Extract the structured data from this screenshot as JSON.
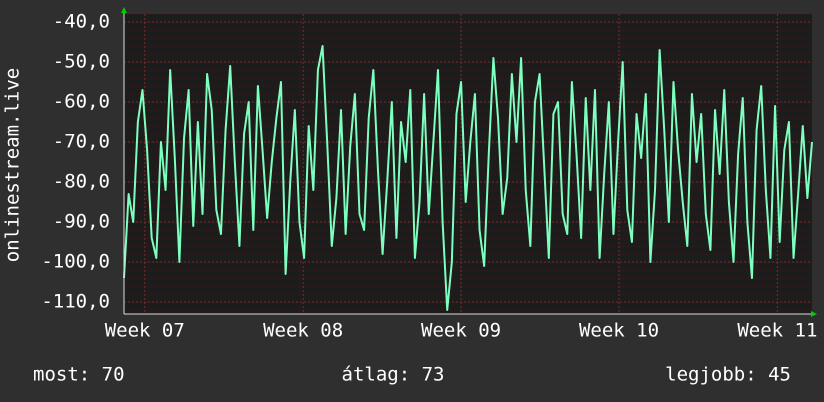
{
  "chart_data": {
    "type": "line",
    "y_label": "onlinestream.live",
    "color": "#7dffc0",
    "values": [
      -104,
      -83,
      -90,
      -65,
      -57,
      -72,
      -94,
      -99,
      -70,
      -82,
      -52,
      -74,
      -100,
      -69,
      -57,
      -91,
      -65,
      -88,
      -53,
      -62,
      -87,
      -93,
      -67,
      -51,
      -75,
      -96,
      -68,
      -60,
      -92,
      -56,
      -72,
      -89,
      -75,
      -64,
      -55,
      -103,
      -80,
      -62,
      -90,
      -99,
      -66,
      -82,
      -52,
      -46,
      -70,
      -96,
      -84,
      -62,
      -93,
      -71,
      -58,
      -88,
      -92,
      -64,
      -52,
      -77,
      -98,
      -80,
      -60,
      -94,
      -65,
      -75,
      -57,
      -99,
      -85,
      -58,
      -88,
      -70,
      -52,
      -90,
      -112,
      -100,
      -63,
      -55,
      -85,
      -70,
      -58,
      -92,
      -101,
      -73,
      -49,
      -64,
      -88,
      -79,
      -53,
      -70,
      -49,
      -82,
      -96,
      -60,
      -53,
      -76,
      -99,
      -63,
      -60,
      -88,
      -93,
      -55,
      -73,
      -94,
      -59,
      -82,
      -57,
      -99,
      -78,
      -60,
      -93,
      -70,
      -50,
      -87,
      -95,
      -63,
      -74,
      -58,
      -100,
      -82,
      -47,
      -67,
      -90,
      -55,
      -72,
      -85,
      -96,
      -58,
      -75,
      -63,
      -88,
      -97,
      -62,
      -78,
      -57,
      -85,
      -100,
      -73,
      -59,
      -90,
      -104,
      -67,
      -56,
      -82,
      -99,
      -61,
      -95,
      -72,
      -65,
      -99,
      -83,
      -66,
      -84,
      -70
    ],
    "xlim": [
      0,
      149
    ],
    "xticks": [
      {
        "value": 4.5,
        "label": "Week 07"
      },
      {
        "value": 38.8,
        "label": "Week 08"
      },
      {
        "value": 73,
        "label": "Week 09"
      },
      {
        "value": 107.2,
        "label": "Week 10"
      },
      {
        "value": 141.5,
        "label": "Week 11"
      }
    ],
    "ylim": [
      -113,
      -38
    ],
    "yticks": [
      {
        "value": -40,
        "label": "-40,0"
      },
      {
        "value": -50,
        "label": "-50,0"
      },
      {
        "value": -60,
        "label": "-60,0"
      },
      {
        "value": -70,
        "label": "-70,0"
      },
      {
        "value": -80,
        "label": "-80,0"
      },
      {
        "value": -90,
        "label": "-90,0"
      },
      {
        "value": -100,
        "label": "-100,0"
      },
      {
        "value": -110,
        "label": "-110,0"
      }
    ],
    "grid": true,
    "stats": [
      "most: 70",
      "átlag: 73",
      "legjobb: 45"
    ]
  }
}
